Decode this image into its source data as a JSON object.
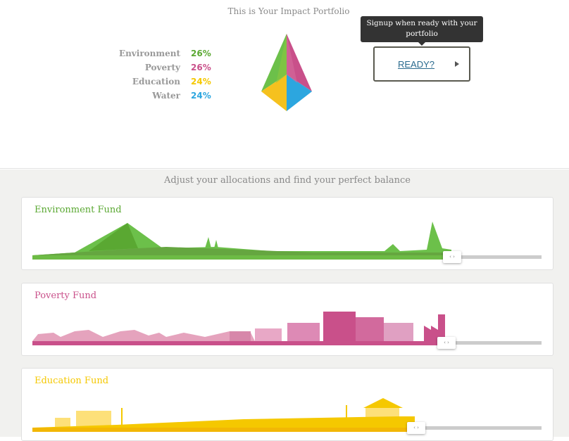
{
  "header": {
    "title": "This is Your Impact Portfolio"
  },
  "portfolio": [
    {
      "name": "Environment",
      "value": "26%",
      "color": "#5aa832"
    },
    {
      "name": "Poverty",
      "value": "26%",
      "color": "#c9508a"
    },
    {
      "name": "Education",
      "value": "24%",
      "color": "#f5c800"
    },
    {
      "name": "Water",
      "value": "24%",
      "color": "#2ca6df"
    }
  ],
  "signup": {
    "tooltip": "Signup when ready with your portfolio",
    "button": "READY?"
  },
  "subtitle": "Adjust your allocations and find your perfect balance",
  "funds": [
    {
      "name": "Environment Fund",
      "color": "#5aa832",
      "slider_percent": 82
    },
    {
      "name": "Poverty Fund",
      "color": "#c9508a",
      "slider_percent": 81
    },
    {
      "name": "Education Fund",
      "color": "#f5c800",
      "slider_percent": 75
    }
  ],
  "slider_handle": "‹ ›"
}
